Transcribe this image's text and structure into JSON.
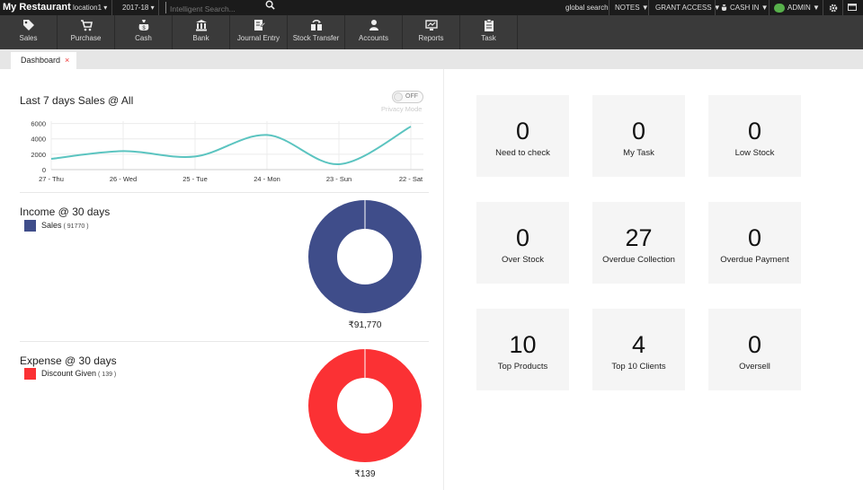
{
  "app": {
    "title": "My Restaurant",
    "location": "location1 ▾",
    "year": "2017-18 ▾",
    "search_placeholder": "Intelligent Search...",
    "global_search": "global search",
    "notes": "NOTES ▼",
    "grant_access": "GRANT ACCESS ▼",
    "cash_in": "CASH IN ▼",
    "admin": "ADMIN ▼"
  },
  "modules": [
    {
      "label": "Sales",
      "icon": "tag-icon"
    },
    {
      "label": "Purchase",
      "icon": "cart-icon"
    },
    {
      "label": "Cash",
      "icon": "money-bag-icon"
    },
    {
      "label": "Bank",
      "icon": "bank-icon"
    },
    {
      "label": "Journal Entry",
      "icon": "journal-icon"
    },
    {
      "label": "Stock Transfer",
      "icon": "stock-transfer-icon"
    },
    {
      "label": "Accounts",
      "icon": "user-icon"
    },
    {
      "label": "Reports",
      "icon": "reports-icon"
    },
    {
      "label": "Task",
      "icon": "clipboard-icon"
    }
  ],
  "tabs": [
    {
      "label": "Dashboard",
      "close": "×"
    }
  ],
  "sales_chart": {
    "title": "Last 7 days Sales @ All",
    "privacy_toggle": "OFF",
    "privacy_label": "Privacy Mode"
  },
  "income": {
    "title": "Income @ 30 days",
    "legend_label": "Sales",
    "legend_amount": "( 91770 )",
    "total": "₹91,770",
    "color": "#3f4d8a"
  },
  "expense": {
    "title": "Expense @ 30 days",
    "legend_label": "Discount Given",
    "legend_amount": "( 139 )",
    "total": "₹139",
    "color": "#fb3134"
  },
  "tiles": [
    {
      "value": "0",
      "label": "Need to check"
    },
    {
      "value": "0",
      "label": "My Task"
    },
    {
      "value": "0",
      "label": "Low Stock"
    },
    {
      "value": "0",
      "label": "Over Stock"
    },
    {
      "value": "27",
      "label": "Overdue Collection"
    },
    {
      "value": "0",
      "label": "Overdue Payment"
    },
    {
      "value": "10",
      "label": "Top Products"
    },
    {
      "value": "4",
      "label": "Top 10 Clients"
    },
    {
      "value": "0",
      "label": "Oversell"
    }
  ],
  "chart_data": [
    {
      "type": "line",
      "title": "Last 7 days Sales @ All",
      "categories": [
        "27 - Thu",
        "26 - Wed",
        "25 - Tue",
        "24 - Mon",
        "23 - Sun",
        "22 - Sat"
      ],
      "series": [
        {
          "values": [
            1400,
            2400,
            1700,
            4500,
            700,
            5600
          ]
        }
      ],
      "yticks": [
        0,
        2000,
        4000,
        6000
      ],
      "ylim": [
        0,
        6300
      ],
      "grid": true,
      "color": "#5bc4c0"
    },
    {
      "type": "pie",
      "title": "Income @ 30 days",
      "labels": [
        "Sales"
      ],
      "values": [
        91770
      ]
    },
    {
      "type": "pie",
      "title": "Expense @ 30 days",
      "labels": [
        "Discount Given"
      ],
      "values": [
        139
      ]
    }
  ]
}
